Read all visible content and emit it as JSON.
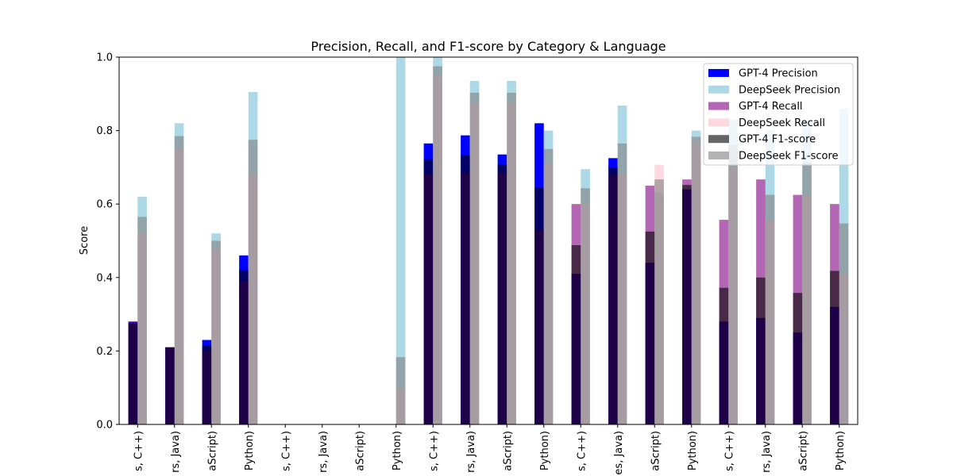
{
  "chart_data": {
    "type": "bar",
    "title": "Precision, Recall, and F1-score by Category & Language",
    "xlabel": "",
    "ylabel": "Score",
    "ylim": [
      0,
      1.0
    ],
    "yticks": [
      "0.0",
      "0.2",
      "0.4",
      "0.6",
      "0.8",
      "1.0"
    ],
    "grid": false,
    "legend_position": "top-right",
    "categories": [
      "s, C++)",
      "rs, Java)",
      "aScript)",
      "Python)",
      "s, C++)",
      "rs, Java)",
      "aScript)",
      "Python)",
      "s, C++)",
      "rs, Java)",
      "aScript)",
      "Python)",
      "s, C++)",
      "es, Java)",
      "aScript)",
      "Python)",
      "s, C++)",
      "rs, Java)",
      "aScript)",
      "Python)"
    ],
    "series": [
      {
        "name": "GPT-4 Precision",
        "color": "#0000ff",
        "opacity": 1.0,
        "group": "gpt4",
        "values": [
          0.28,
          0.21,
          0.23,
          0.46,
          0,
          0,
          0,
          0,
          0.765,
          0.787,
          0.735,
          0.82,
          0.41,
          0.725,
          0.44,
          0.64,
          0.28,
          0.29,
          0.25,
          0.32
        ]
      },
      {
        "name": "DeepSeek Precision",
        "color": "#add8e6",
        "opacity": 1.0,
        "group": "deepseek",
        "values": [
          0.62,
          0.82,
          0.52,
          0.905,
          0,
          0,
          0,
          1.0,
          1.0,
          0.935,
          0.935,
          0.8,
          0.695,
          0.868,
          0.63,
          0.8,
          0.83,
          0.8,
          0.83,
          0.86
        ]
      },
      {
        "name": "GPT-4 Recall",
        "color": "#800080",
        "opacity": 0.6,
        "group": "gpt4",
        "values": [
          0.28,
          0.21,
          0.2,
          0.39,
          0,
          0,
          0,
          0,
          0.68,
          0.685,
          0.685,
          0.53,
          0.6,
          0.68,
          0.65,
          0.667,
          0.557,
          0.667,
          0.625,
          0.6
        ]
      },
      {
        "name": "DeepSeek Recall",
        "color": "#ffc0cb",
        "opacity": 0.6,
        "group": "deepseek",
        "values": [
          0.52,
          0.75,
          0.48,
          0.68,
          0,
          0,
          0,
          0.1,
          0.95,
          0.875,
          0.875,
          0.71,
          0.6,
          0.68,
          0.707,
          0.77,
          0.7,
          0.557,
          0.625,
          0.41
        ]
      },
      {
        "name": "GPT-4 F1-score",
        "color": "#000000",
        "opacity": 0.6,
        "group": "gpt4",
        "values": [
          0.275,
          0.21,
          0.215,
          0.42,
          0,
          0,
          0,
          0,
          0.722,
          0.733,
          0.708,
          0.645,
          0.488,
          0.7,
          0.525,
          0.652,
          0.372,
          0.4,
          0.358,
          0.418
        ]
      },
      {
        "name": "DeepSeek F1-score",
        "color": "#808080",
        "opacity": 0.6,
        "group": "deepseek",
        "values": [
          0.565,
          0.785,
          0.5,
          0.775,
          0,
          0,
          0,
          0.183,
          0.975,
          0.903,
          0.903,
          0.75,
          0.643,
          0.765,
          0.667,
          0.783,
          0.76,
          0.625,
          0.714,
          0.547
        ]
      }
    ]
  }
}
